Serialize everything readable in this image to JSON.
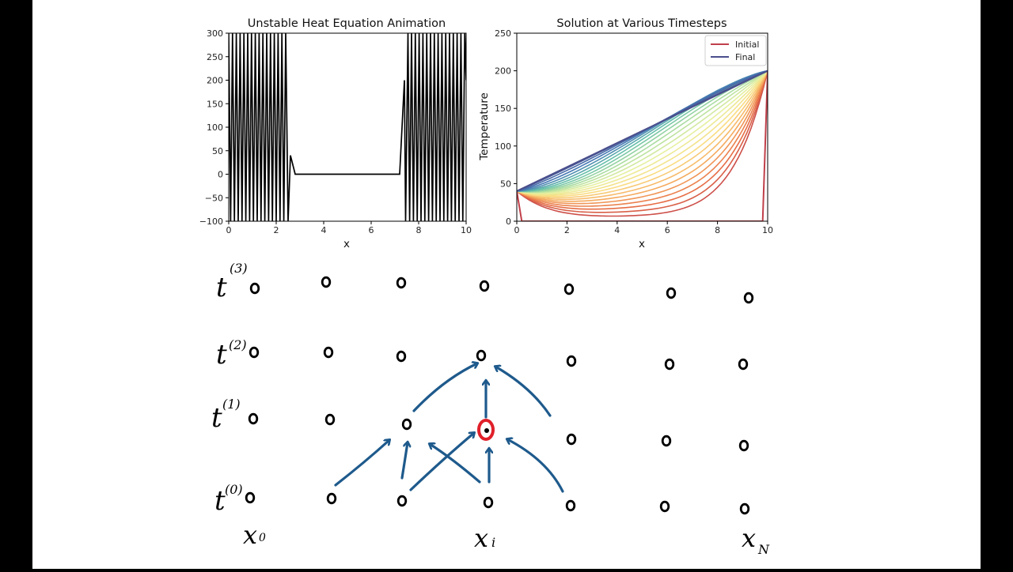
{
  "chart_data": [
    {
      "type": "line",
      "title": "Unstable Heat Equation Animation",
      "xlabel": "x",
      "ylabel": "",
      "xlim": [
        0,
        10
      ],
      "ylim": [
        -100,
        300
      ],
      "xticks": [
        "0",
        "2",
        "4",
        "6",
        "8",
        "10"
      ],
      "yticks": [
        "−100",
        "−50",
        "0",
        "50",
        "100",
        "150",
        "200",
        "250",
        "300"
      ],
      "grid": false,
      "series": [
        {
          "color": "#000000",
          "points": [
            [
              0.0,
              300
            ],
            [
              0.08,
              -100
            ],
            [
              0.16,
              300
            ],
            [
              0.24,
              -100
            ],
            [
              0.32,
              300
            ],
            [
              0.4,
              -100
            ],
            [
              0.48,
              300
            ],
            [
              0.56,
              -100
            ],
            [
              0.64,
              300
            ],
            [
              0.72,
              -100
            ],
            [
              0.8,
              300
            ],
            [
              0.88,
              -100
            ],
            [
              0.96,
              300
            ],
            [
              1.04,
              -100
            ],
            [
              1.12,
              300
            ],
            [
              1.2,
              -100
            ],
            [
              1.28,
              300
            ],
            [
              1.36,
              -100
            ],
            [
              1.44,
              300
            ],
            [
              1.52,
              -100
            ],
            [
              1.6,
              300
            ],
            [
              1.68,
              -100
            ],
            [
              1.76,
              300
            ],
            [
              1.84,
              -100
            ],
            [
              1.92,
              300
            ],
            [
              2.0,
              -100
            ],
            [
              2.08,
              300
            ],
            [
              2.16,
              -100
            ],
            [
              2.24,
              300
            ],
            [
              2.32,
              -100
            ],
            [
              2.4,
              300
            ],
            [
              2.5,
              -100
            ],
            [
              2.6,
              40
            ],
            [
              2.8,
              0
            ],
            [
              7.2,
              0
            ],
            [
              7.4,
              200
            ],
            [
              7.45,
              -100
            ],
            [
              7.55,
              300
            ],
            [
              7.62,
              -100
            ],
            [
              7.7,
              300
            ],
            [
              7.78,
              -100
            ],
            [
              7.86,
              300
            ],
            [
              7.94,
              -100
            ],
            [
              8.02,
              300
            ],
            [
              8.1,
              -100
            ],
            [
              8.18,
              300
            ],
            [
              8.26,
              -100
            ],
            [
              8.34,
              300
            ],
            [
              8.42,
              -100
            ],
            [
              8.5,
              300
            ],
            [
              8.58,
              -100
            ],
            [
              8.66,
              300
            ],
            [
              8.74,
              -100
            ],
            [
              8.82,
              300
            ],
            [
              8.9,
              -100
            ],
            [
              8.98,
              300
            ],
            [
              9.06,
              -100
            ],
            [
              9.14,
              300
            ],
            [
              9.22,
              -100
            ],
            [
              9.3,
              300
            ],
            [
              9.38,
              -100
            ],
            [
              9.46,
              300
            ],
            [
              9.54,
              -100
            ],
            [
              9.62,
              300
            ],
            [
              9.7,
              -100
            ],
            [
              9.78,
              300
            ],
            [
              9.86,
              -100
            ],
            [
              9.94,
              300
            ],
            [
              10.0,
              200
            ]
          ]
        }
      ]
    },
    {
      "type": "line",
      "title": "Solution at Various Timesteps",
      "xlabel": "x",
      "ylabel": "Temperature",
      "xlim": [
        0,
        10
      ],
      "ylim": [
        0,
        250
      ],
      "xticks": [
        "0",
        "2",
        "4",
        "6",
        "8",
        "10"
      ],
      "yticks": [
        "0",
        "50",
        "100",
        "150",
        "200",
        "250"
      ],
      "grid": false,
      "legend": {
        "placement": "top-right",
        "entries": [
          {
            "label": "Initial",
            "color": "#c0404a"
          },
          {
            "label": "Final",
            "color": "#4a4e8c"
          }
        ]
      },
      "boundary": {
        "left": 40,
        "right": 200
      },
      "initial_curve": {
        "x": [
          0,
          0.2,
          9.8,
          10
        ],
        "y": [
          40,
          0,
          0,
          200
        ],
        "color": "#c0404a"
      },
      "final_curve": {
        "x": [
          0,
          10
        ],
        "y": [
          40,
          200
        ],
        "color": "#4a4e8c"
      },
      "colormap": "Spectral",
      "num_timesteps": 25
    }
  ],
  "sketch": {
    "time_labels": [
      {
        "base": "t",
        "sup": "(3)"
      },
      {
        "base": "t",
        "sup": "(2)"
      },
      {
        "base": "t",
        "sup": "(1)"
      },
      {
        "base": "t",
        "sup": "(0)"
      }
    ],
    "space_labels": [
      {
        "base": "x",
        "sub": "0"
      },
      {
        "base": "x",
        "sub": "i"
      },
      {
        "base": "x",
        "sub": "N"
      }
    ],
    "node_symbol": "o",
    "arrow_color": "#1e5a8c",
    "highlight_color": "#e0202a"
  }
}
